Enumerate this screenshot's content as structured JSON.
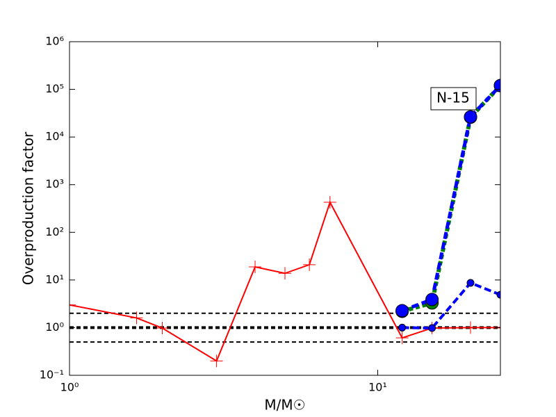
{
  "chart_data": {
    "type": "line",
    "xlabel": "M/M☉",
    "ylabel": "Overproduction factor",
    "annotation": "N-15",
    "xscale": "log",
    "yscale": "log",
    "xlim": [
      1,
      25
    ],
    "ylim": [
      0.1,
      1000000
    ],
    "xticks": [
      {
        "value": 1,
        "label": "10⁰"
      },
      {
        "value": 10,
        "label": "10¹"
      }
    ],
    "yticks": [
      {
        "value": 0.1,
        "label": "10⁻¹"
      },
      {
        "value": 1,
        "label": "10⁰"
      },
      {
        "value": 10,
        "label": "10¹"
      },
      {
        "value": 100,
        "label": "10²"
      },
      {
        "value": 1000,
        "label": "10³"
      },
      {
        "value": 10000,
        "label": "10⁴"
      },
      {
        "value": 100000,
        "label": "10⁵"
      },
      {
        "value": 1000000,
        "label": "10⁶"
      }
    ],
    "reference_lines": [
      0.5,
      1,
      2
    ],
    "reference_line_widths": [
      2,
      4,
      2
    ],
    "series": [
      {
        "color": "#ff0000",
        "linestyle": "solid",
        "linewidth": 2,
        "marker": "plus",
        "markersize": 9,
        "x": [
          1,
          1.65,
          2,
          3,
          4,
          5,
          6,
          7,
          12,
          15,
          20,
          25
        ],
        "values": [
          3.0,
          1.6,
          0.98,
          0.2,
          18.8,
          13.8,
          20.9,
          427,
          0.61,
          0.98,
          1.0,
          1.0
        ]
      },
      {
        "color": "#008000",
        "linestyle": "dotted",
        "linewidth": 6,
        "marker": "circle",
        "markersize": 9,
        "x": [
          12,
          15,
          20,
          25
        ],
        "values": [
          2.2,
          3.3,
          26000,
          120000
        ]
      },
      {
        "color": "#0000ff",
        "linestyle": "dashed",
        "linewidth": 5,
        "marker": "circle",
        "markersize": 9,
        "x": [
          12,
          15,
          20,
          25
        ],
        "values": [
          2.27,
          3.9,
          26500,
          120000
        ]
      },
      {
        "color": "#0000ff",
        "linestyle": "dashed",
        "linewidth": 4,
        "marker": "circle",
        "markersize": 5,
        "x": [
          12,
          15,
          20,
          25
        ],
        "values": [
          1.0,
          0.98,
          8.7,
          4.9
        ]
      }
    ]
  }
}
